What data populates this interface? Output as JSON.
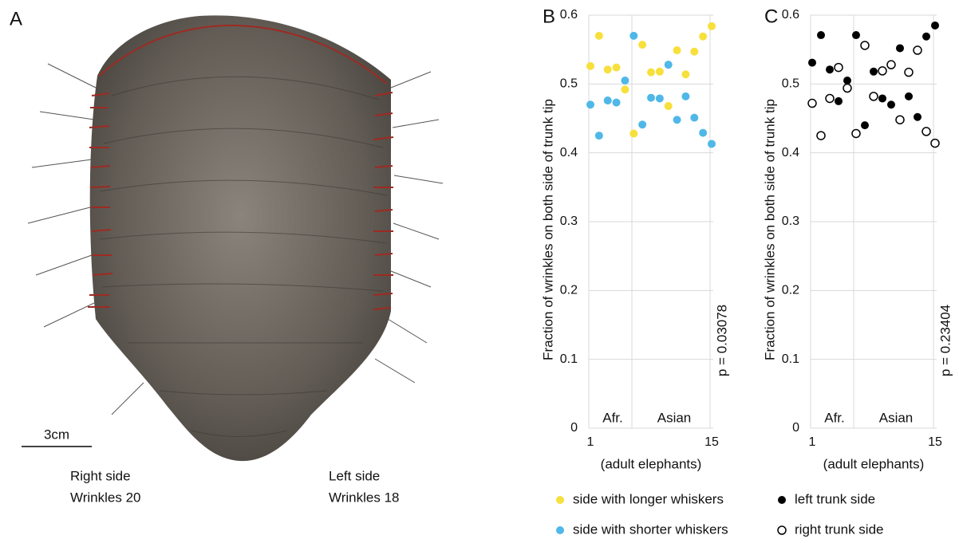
{
  "panel_a": {
    "label": "A",
    "scale_bar": "3cm",
    "right_side": {
      "title": "Right side",
      "wrinkles": "Wrinkles 20"
    },
    "left_side": {
      "title": "Left side",
      "wrinkles": "Wrinkles 18"
    }
  },
  "chart_data": [
    {
      "type": "scatter",
      "panel": "B",
      "ylabel": "Fraction of wrinkles on both side of trunk tip",
      "xlabel": "(adult elephants)",
      "annotation": "p = 0.03078",
      "group_labels": [
        "Afr.",
        "Asian"
      ],
      "x": [
        1,
        2,
        3,
        4,
        5,
        6,
        7,
        8,
        9,
        10,
        11,
        12,
        13,
        14,
        15
      ],
      "xlim": [
        1,
        15
      ],
      "xticks": [
        1,
        15
      ],
      "ylim": [
        0,
        0.6
      ],
      "yticks": [
        0,
        0.1,
        0.2,
        0.3,
        0.4,
        0.5,
        0.6
      ],
      "grid": true,
      "legend": "bottom",
      "series": [
        {
          "name": "side with longer whiskers",
          "color": "#f7e03c",
          "values": [
            0.526,
            0.57,
            0.521,
            0.524,
            0.492,
            0.428,
            0.557,
            0.517,
            0.518,
            0.468,
            0.549,
            0.514,
            0.547,
            0.569,
            0.584
          ]
        },
        {
          "name": "side with shorter whiskers",
          "color": "#4fb8e8",
          "values": [
            0.47,
            0.425,
            0.476,
            0.473,
            0.505,
            0.57,
            0.441,
            0.48,
            0.479,
            0.528,
            0.448,
            0.482,
            0.451,
            0.429,
            0.413
          ]
        }
      ]
    },
    {
      "type": "scatter",
      "panel": "C",
      "ylabel": "Fraction of wrinkles on both side of trunk tip",
      "xlabel": "(adult elephants)",
      "annotation": "p = 0.23404",
      "group_labels": [
        "Afr.",
        "Asian"
      ],
      "x": [
        1,
        2,
        3,
        4,
        5,
        6,
        7,
        8,
        9,
        10,
        11,
        12,
        13,
        14,
        15
      ],
      "xlim": [
        1,
        15
      ],
      "xticks": [
        1,
        15
      ],
      "ylim": [
        0,
        0.6
      ],
      "yticks": [
        0,
        0.1,
        0.2,
        0.3,
        0.4,
        0.5,
        0.6
      ],
      "grid": true,
      "legend": "bottom",
      "series": [
        {
          "name": "left trunk side",
          "color": "#000000",
          "values": [
            0.531,
            0.571,
            0.521,
            0.475,
            0.505,
            0.571,
            0.44,
            0.518,
            0.479,
            0.47,
            0.552,
            0.482,
            0.452,
            0.569,
            0.585
          ]
        },
        {
          "name": "right trunk side",
          "color": "#000000",
          "facecolor": "#ffffff",
          "values": [
            0.472,
            0.425,
            0.479,
            0.524,
            0.494,
            0.428,
            0.556,
            0.482,
            0.519,
            0.528,
            0.448,
            0.517,
            0.549,
            0.431,
            0.414
          ]
        }
      ]
    }
  ]
}
